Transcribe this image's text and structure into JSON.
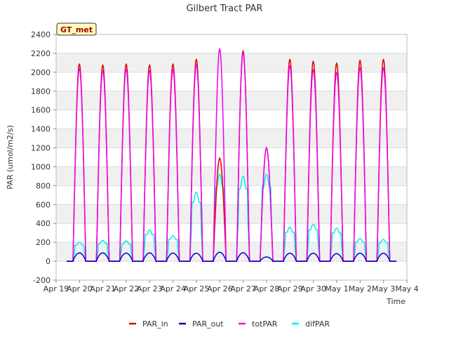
{
  "chart_data": {
    "type": "line",
    "title": "Gilbert Tract PAR",
    "xlabel": "Time",
    "ylabel": "PAR (umol/m2/s)",
    "station_label": "GT_met",
    "ylim": [
      -200,
      2400
    ],
    "yticks": [
      -200,
      0,
      200,
      400,
      600,
      800,
      1000,
      1200,
      1400,
      1600,
      1800,
      2000,
      2200,
      2400
    ],
    "xlim": [
      0,
      15
    ],
    "xticks": [
      {
        "x": 0,
        "label": "Apr 19"
      },
      {
        "x": 1,
        "label": "Apr 20"
      },
      {
        "x": 2,
        "label": "Apr 21"
      },
      {
        "x": 3,
        "label": "Apr 22"
      },
      {
        "x": 4,
        "label": "Apr 23"
      },
      {
        "x": 5,
        "label": "Apr 24"
      },
      {
        "x": 6,
        "label": "Apr 25"
      },
      {
        "x": 7,
        "label": "Apr 26"
      },
      {
        "x": 8,
        "label": "Apr 27"
      },
      {
        "x": 9,
        "label": "Apr 28"
      },
      {
        "x": 10,
        "label": "Apr 29"
      },
      {
        "x": 11,
        "label": "Apr 30"
      },
      {
        "x": 12,
        "label": "May 1"
      },
      {
        "x": 13,
        "label": "May 2"
      },
      {
        "x": 14,
        "label": "May 3"
      },
      {
        "x": 15,
        "label": "May 4"
      }
    ],
    "x_units": "days since Apr 19",
    "data_start": 0.45,
    "data_end": 14.55,
    "daily_peaks": [
      {
        "day": 0,
        "PAR_in": 2090,
        "totPAR": 2040,
        "difPAR": 200,
        "PAR_out": 88
      },
      {
        "day": 1,
        "PAR_in": 2080,
        "totPAR": 2020,
        "difPAR": 220,
        "PAR_out": 88
      },
      {
        "day": 2,
        "PAR_in": 2090,
        "totPAR": 2030,
        "difPAR": 215,
        "PAR_out": 86
      },
      {
        "day": 3,
        "PAR_in": 2080,
        "totPAR": 2020,
        "difPAR": 330,
        "PAR_out": 88
      },
      {
        "day": 4,
        "PAR_in": 2090,
        "totPAR": 2030,
        "difPAR": 270,
        "PAR_out": 86
      },
      {
        "day": 5,
        "PAR_in": 2140,
        "totPAR": 2080,
        "difPAR": 730,
        "PAR_out": 85
      },
      {
        "day": 6,
        "PAR_in": 1090,
        "totPAR": 2250,
        "difPAR": 920,
        "PAR_out": 95
      },
      {
        "day": 7,
        "PAR_in": 2230,
        "totPAR": 2210,
        "difPAR": 900,
        "PAR_out": 90
      },
      {
        "day": 8,
        "PAR_in": 1200,
        "totPAR": 1200,
        "difPAR": 920,
        "PAR_out": 45
      },
      {
        "day": 9,
        "PAR_in": 2140,
        "totPAR": 2070,
        "difPAR": 360,
        "PAR_out": 85
      },
      {
        "day": 10,
        "PAR_in": 2120,
        "totPAR": 2030,
        "difPAR": 390,
        "PAR_out": 85
      },
      {
        "day": 11,
        "PAR_in": 2100,
        "totPAR": 2000,
        "difPAR": 350,
        "PAR_out": 80
      },
      {
        "day": 12,
        "PAR_in": 2130,
        "totPAR": 2050,
        "difPAR": 240,
        "PAR_out": 85
      },
      {
        "day": 13,
        "PAR_in": 2140,
        "totPAR": 2050,
        "difPAR": 230,
        "PAR_out": 85
      }
    ],
    "series": [
      {
        "name": "PAR_in",
        "color": "#dd0000"
      },
      {
        "name": "PAR_out",
        "color": "#0000cc"
      },
      {
        "name": "totPAR",
        "color": "#ee00ee"
      },
      {
        "name": "difPAR",
        "color": "#00eeee"
      }
    ],
    "legend_position": "bottom",
    "grid": true
  }
}
